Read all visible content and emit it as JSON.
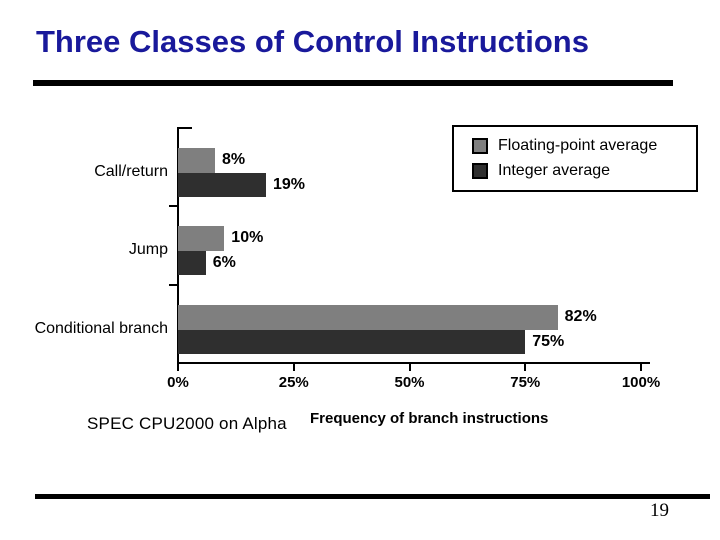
{
  "page": {
    "title": "Three Classes of Control Instructions",
    "footnote": "SPEC CPU2000 on Alpha",
    "page_number": "19"
  },
  "colors": {
    "title_text": "#19199b",
    "axis": "#000000",
    "floating_point_bar": "#7f7f7f",
    "integer_bar": "#2f2f2f"
  },
  "chart_data": {
    "type": "bar",
    "orientation": "horizontal",
    "title": "",
    "xlabel": "Frequency of branch instructions",
    "ylabel": "",
    "categories": [
      "Call/return",
      "Jump",
      "Conditional branch"
    ],
    "series": [
      {
        "name": "Floating-point average",
        "color": "#7f7f7f",
        "values": [
          8,
          10,
          82
        ],
        "labels": [
          "8%",
          "10%",
          "82%"
        ]
      },
      {
        "name": "Integer average",
        "color": "#2f2f2f",
        "values": [
          19,
          6,
          75
        ],
        "labels": [
          "19%",
          "6%",
          "75%"
        ]
      }
    ],
    "x_ticks": [
      "0%",
      "25%",
      "50%",
      "75%",
      "100%"
    ],
    "xlim": [
      0,
      100
    ],
    "grid": false,
    "legend_position": "top-right"
  }
}
